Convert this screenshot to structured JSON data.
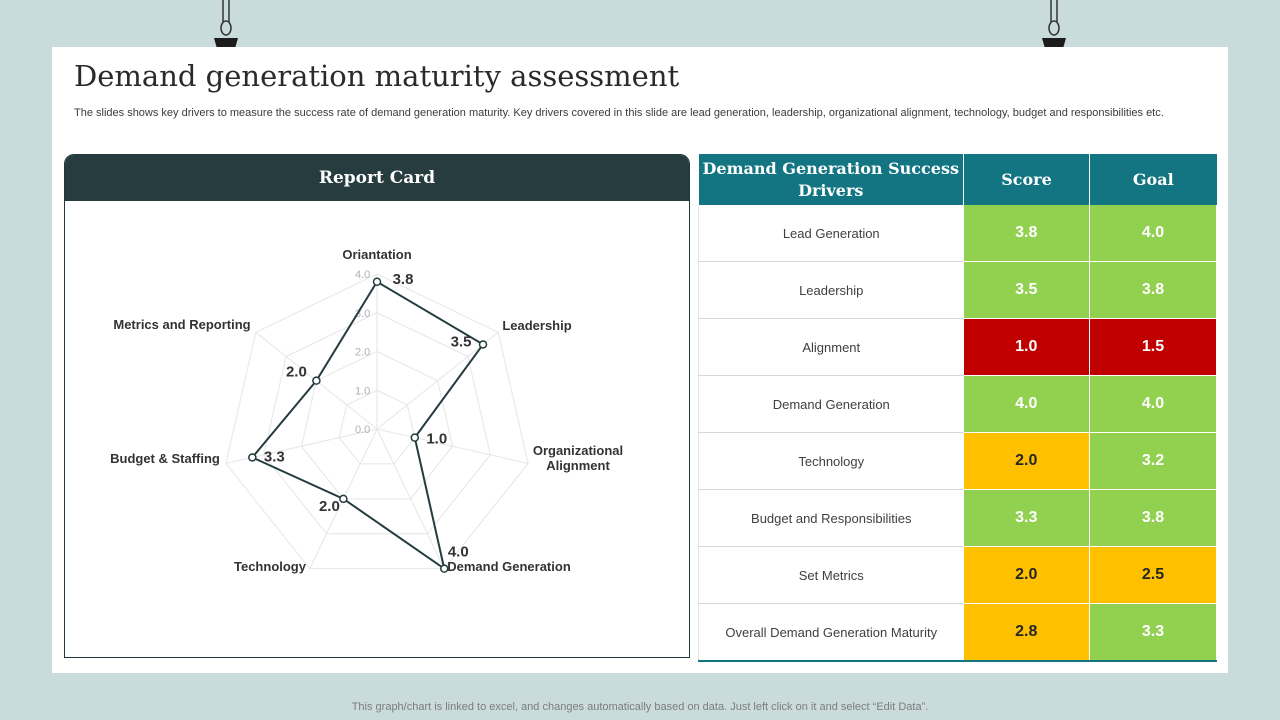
{
  "title": "Demand generation maturity assessment",
  "subtitle": "The slides shows key drivers to measure the success rate of demand generation maturity. Key drivers covered in this slide are lead generation, leadership, organizational alignment, technology, budget and responsibilities etc.",
  "report_card": {
    "title": "Report Card"
  },
  "chart_data": {
    "type": "radar",
    "title": "Report Card",
    "axes": [
      "Oriantation",
      "Leadership",
      "Organizational Alignment",
      "Demand Generation",
      "Technology",
      "Budget & Staffing",
      "Metrics and Reporting"
    ],
    "values": [
      3.8,
      3.5,
      1.0,
      4.0,
      2.0,
      3.3,
      2.0
    ],
    "value_labels": [
      "3.8",
      "3.5",
      "1.0",
      "4.0",
      "2.0",
      "3.3",
      "2.0"
    ],
    "range": [
      0,
      4
    ],
    "ticks": [
      "0.0",
      "1.0",
      "2.0",
      "3.0",
      "4.0"
    ],
    "tick_values": [
      0,
      1,
      2,
      3,
      4
    ],
    "grid": true
  },
  "table": {
    "headers": [
      "Demand Generation Success Drivers",
      "Score",
      "Goal"
    ],
    "rows": [
      {
        "driver": "Lead Generation",
        "score": "3.8",
        "goal": "4.0",
        "score_color": "#92d050",
        "goal_color": "#92d050",
        "score_text": "#ffffff",
        "goal_text": "#ffffff"
      },
      {
        "driver": "Leadership",
        "score": "3.5",
        "goal": "3.8",
        "score_color": "#92d050",
        "goal_color": "#92d050",
        "score_text": "#ffffff",
        "goal_text": "#ffffff"
      },
      {
        "driver": "Alignment",
        "score": "1.0",
        "goal": "1.5",
        "score_color": "#c00000",
        "goal_color": "#c00000",
        "score_text": "#ffffff",
        "goal_text": "#ffffff"
      },
      {
        "driver": "Demand Generation",
        "score": "4.0",
        "goal": "4.0",
        "score_color": "#92d050",
        "goal_color": "#92d050",
        "score_text": "#ffffff",
        "goal_text": "#ffffff"
      },
      {
        "driver": "Technology",
        "score": "2.0",
        "goal": "3.2",
        "score_color": "#ffc000",
        "goal_color": "#92d050",
        "score_text": "#262626",
        "goal_text": "#ffffff"
      },
      {
        "driver": "Budget and Responsibilities",
        "score": "3.3",
        "goal": "3.8",
        "score_color": "#92d050",
        "goal_color": "#92d050",
        "score_text": "#ffffff",
        "goal_text": "#ffffff"
      },
      {
        "driver": "Set Metrics",
        "score": "2.0",
        "goal": "2.5",
        "score_color": "#ffc000",
        "goal_color": "#ffc000",
        "score_text": "#262626",
        "goal_text": "#262626"
      },
      {
        "driver": "Overall  Demand  Generation  Maturity",
        "score": "2.8",
        "goal": "3.3",
        "score_color": "#ffc000",
        "goal_color": "#92d050",
        "score_text": "#262626",
        "goal_text": "#ffffff"
      }
    ]
  },
  "footer": "This graph/chart is linked to excel,  and changes automatically based on data. Just left click on it and select “Edit Data”.",
  "colors": {
    "header_dark": "#263c3f",
    "header_teal": "#137582",
    "radar_line": "#243b3f",
    "green": "#92d050",
    "red": "#c00000",
    "amber": "#ffc000"
  }
}
